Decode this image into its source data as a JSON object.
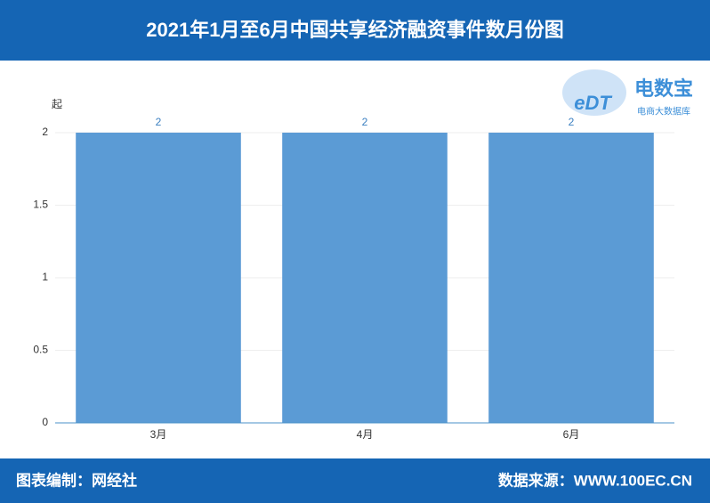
{
  "chart_data": {
    "type": "bar",
    "title": "2021年1月至6月中国共享经济融资事件数月份图",
    "y_unit": "起",
    "categories": [
      "3月",
      "4月",
      "6月"
    ],
    "values": [
      2,
      2,
      2
    ],
    "color": "#5b9bd5",
    "ylim": [
      0,
      2
    ],
    "yticks": [
      0,
      0.5,
      1,
      1.5,
      2
    ],
    "grid": true
  },
  "logo": {
    "mark": "eDT",
    "name": "电数宝",
    "tagline": "电商大数据库"
  },
  "footer": {
    "left": "图表编制：网经社",
    "right": "数据来源：WWW.100EC.CN"
  }
}
